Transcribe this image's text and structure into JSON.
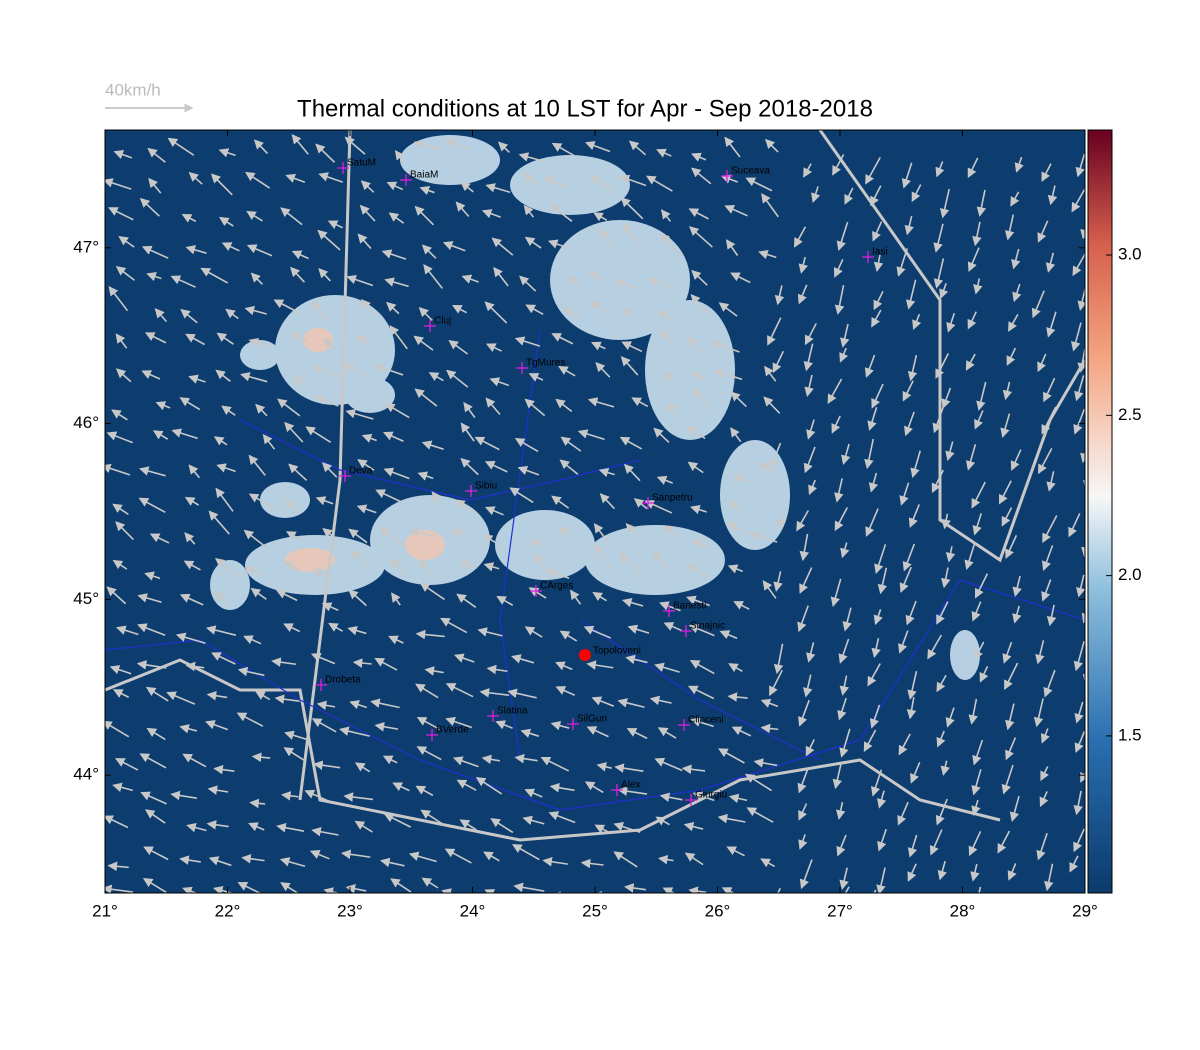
{
  "map": {
    "title": "Thermal conditions at 10 LST for Apr - Sep  2018-2018",
    "wind_scale_label": "40km/h",
    "xlim": [
      21,
      29
    ],
    "ylim": [
      43.33,
      47.67
    ],
    "xticks": [
      {
        "value": 21,
        "label": "21°"
      },
      {
        "value": 22,
        "label": "22°"
      },
      {
        "value": 23,
        "label": "23°"
      },
      {
        "value": 24,
        "label": "24°"
      },
      {
        "value": 25,
        "label": "25°"
      },
      {
        "value": 26,
        "label": "26°"
      },
      {
        "value": 27,
        "label": "27°"
      },
      {
        "value": 28,
        "label": "28°"
      },
      {
        "value": 29,
        "label": "29°"
      }
    ],
    "yticks": [
      {
        "value": 44,
        "label": "44°"
      },
      {
        "value": 45,
        "label": "45°"
      },
      {
        "value": 46,
        "label": "46°"
      },
      {
        "value": 47,
        "label": "47°"
      }
    ],
    "colorbar": {
      "lim": [
        1.01,
        3.39
      ],
      "ticks": [
        1.5,
        {
          "value": 2,
          "label": "2.0"
        },
        2.5,
        {
          "value": 3,
          "label": "3.0"
        }
      ]
    },
    "places": [
      "SatuM",
      "BaiaM",
      "Suceava",
      "Iasi",
      "Cluj",
      "TgMures",
      "Deva",
      "Sibiu",
      "Sanpetru",
      "CArges",
      "Banesti",
      "Sinajnic",
      "Drobeta",
      "Slatina",
      "SilGun",
      "Clinceni",
      "BVerde",
      "Alex",
      "Giurgiu"
    ],
    "highlight": "Topoloveni"
  }
}
